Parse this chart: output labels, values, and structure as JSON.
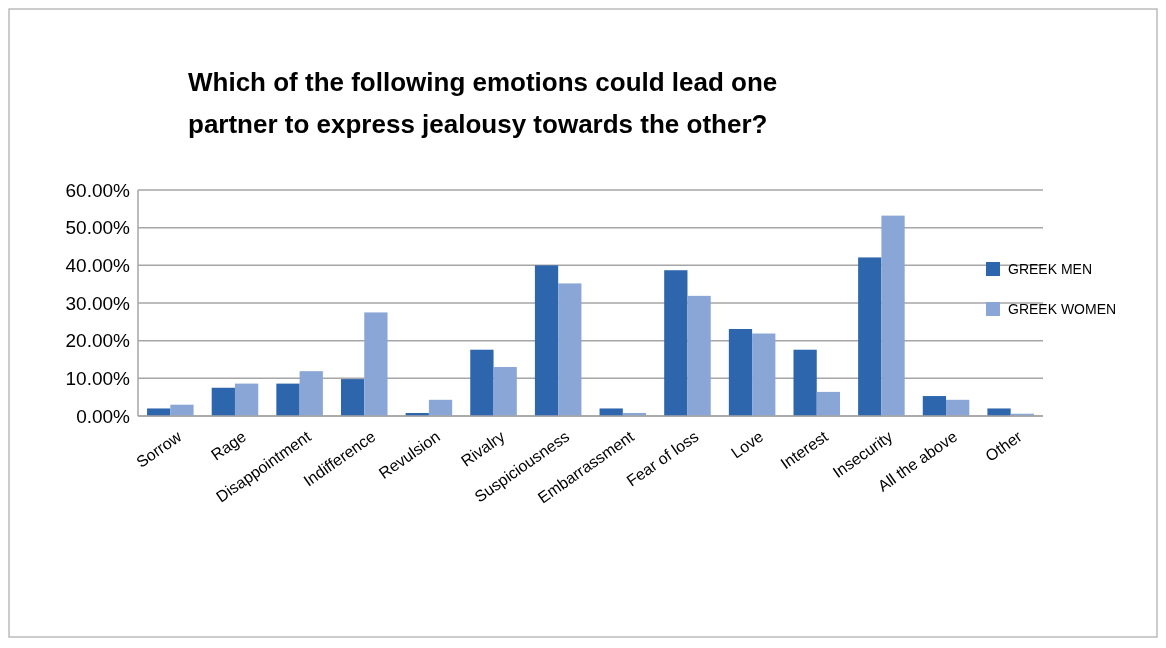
{
  "chart_data": {
    "type": "bar",
    "title": "Which of the following emotions could lead one partner to express  jealousy towards the other?",
    "categories": [
      "Sorrow",
      "Rage",
      "Disappointment",
      "Indifference",
      "Revulsion",
      "Rivalry",
      "Suspiciousness",
      "Embarrassment",
      "Fear of loss",
      "Love",
      "Interest",
      "Insecurity",
      "All the above",
      "Other"
    ],
    "series": [
      {
        "name": "GREEK MEN",
        "color": "#2e66ad",
        "values": [
          2.0,
          7.5,
          8.6,
          9.8,
          0.8,
          17.6,
          40.0,
          2.0,
          38.7,
          23.1,
          17.6,
          42.1,
          5.3,
          2.0
        ]
      },
      {
        "name": "GREEK  WOMEN",
        "color": "#8aa6d6",
        "values": [
          3.0,
          8.6,
          11.9,
          27.5,
          4.3,
          13.0,
          35.2,
          0.8,
          31.9,
          21.9,
          6.4,
          53.2,
          4.3,
          0.6
        ]
      }
    ],
    "ylim": [
      0,
      60
    ],
    "yticks": [
      {
        "value": 0,
        "label": "0.00%"
      },
      {
        "value": 10,
        "label": "10.00%"
      },
      {
        "value": 20,
        "label": "20.00%"
      },
      {
        "value": 30,
        "label": "30.00%"
      },
      {
        "value": 40,
        "label": "40.00%"
      },
      {
        "value": 50,
        "label": "50.00%"
      },
      {
        "value": 60,
        "label": "60.00%"
      }
    ],
    "grid": "y",
    "legend": "right"
  }
}
